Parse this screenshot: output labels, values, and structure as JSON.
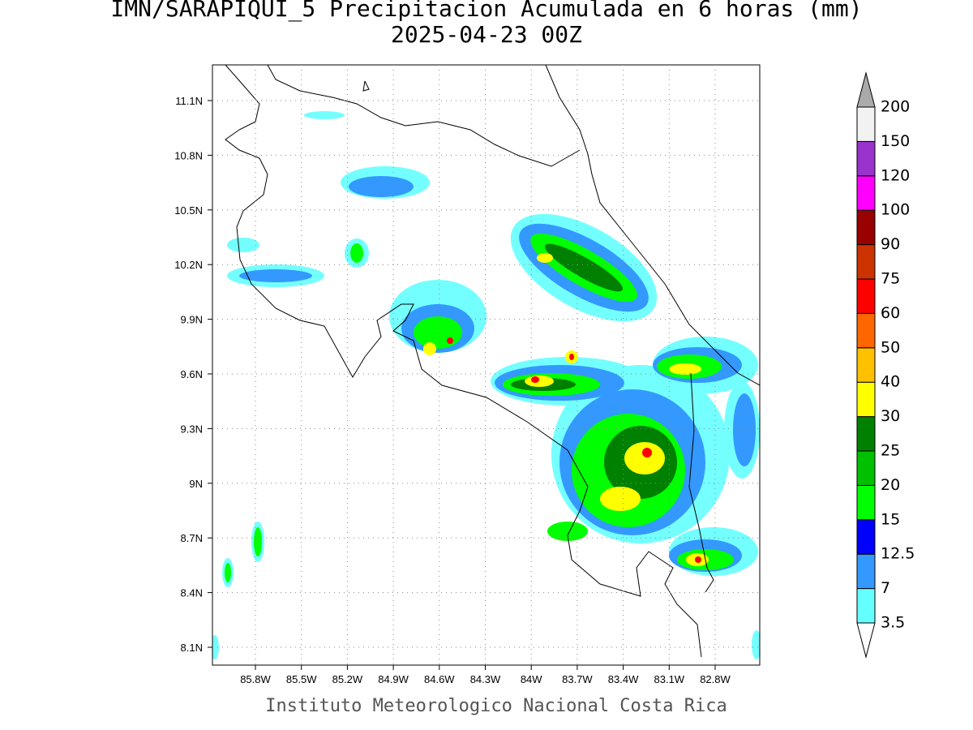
{
  "title": "IMN/SARAPIQUI_5 Precipitacion Acumulada en 6 horas (mm)",
  "subtitle": "2025-04-23 00Z",
  "lat_labels": [
    "11.1N",
    "10.8N",
    "10.5N",
    "10.2N",
    "9.9N",
    "9.6N",
    "9.3N",
    "9N",
    "8.7N",
    "8.4N",
    "8.1N"
  ],
  "lon_labels": [
    "85.8W",
    "85.5W",
    "85.2W",
    "84.9W",
    "84.6W",
    "84.3W",
    "84W",
    "83.7W",
    "83.4W",
    "83.1W",
    "82.8W"
  ],
  "colorbar": {
    "levels": [
      3.5,
      7,
      12.5,
      15,
      20,
      25,
      30,
      40,
      50,
      60,
      75,
      90,
      100,
      120,
      150,
      200
    ],
    "colors": [
      "#66ffff",
      "#3399ff",
      "#0000ff",
      "#00ff00",
      "#00c000",
      "#008000",
      "#ffff00",
      "#ffc000",
      "#ff6600",
      "#ff0000",
      "#cc3300",
      "#990000",
      "#ff00ff",
      "#9933cc",
      "#f2f2f2"
    ],
    "under_color": "#ffffff",
    "over_color": "#aaaaaa"
  },
  "footer": "Instituto Meteorologico Nacional Costa Rica"
}
